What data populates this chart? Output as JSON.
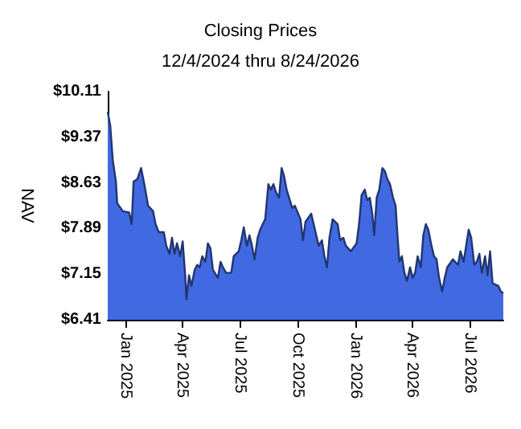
{
  "chart_data": {
    "type": "area",
    "title": "Closing Prices",
    "subtitle": "12/4/2024 thru 8/24/2026",
    "ylabel": "NAV",
    "x": [
      "2024-12-04",
      "2024-12-08",
      "2024-12-12",
      "2024-12-17",
      "2024-12-19",
      "2024-12-28",
      "2025-01-07",
      "2025-01-11",
      "2025-01-14",
      "2025-01-20",
      "2025-01-26",
      "2025-02-01",
      "2025-02-06",
      "2025-02-14",
      "2025-02-18",
      "2025-02-23",
      "2025-03-03",
      "2025-03-07",
      "2025-03-12",
      "2025-03-16",
      "2025-03-20",
      "2025-03-24",
      "2025-03-29",
      "2025-04-02",
      "2025-04-06",
      "2025-04-08",
      "2025-04-12",
      "2025-04-16",
      "2025-04-21",
      "2025-04-25",
      "2025-04-29",
      "2025-05-03",
      "2025-05-08",
      "2025-05-12",
      "2025-05-16",
      "2025-05-20",
      "2025-05-28",
      "2025-06-01",
      "2025-06-05",
      "2025-06-10",
      "2025-06-18",
      "2025-06-22",
      "2025-06-30",
      "2025-07-04",
      "2025-07-08",
      "2025-07-13",
      "2025-07-17",
      "2025-07-21",
      "2025-07-25",
      "2025-07-30",
      "2025-08-03",
      "2025-08-07",
      "2025-08-11",
      "2025-08-16",
      "2025-08-20",
      "2025-08-24",
      "2025-08-28",
      "2025-09-02",
      "2025-09-06",
      "2025-09-10",
      "2025-09-14",
      "2025-09-23",
      "2025-09-27",
      "2025-10-06",
      "2025-10-10",
      "2025-10-14",
      "2025-10-23",
      "2025-10-27",
      "2025-10-31",
      "2025-11-04",
      "2025-11-09",
      "2025-11-13",
      "2025-11-17",
      "2025-11-21",
      "2025-11-26",
      "2025-12-04",
      "2025-12-08",
      "2025-12-13",
      "2025-12-17",
      "2025-12-25",
      "2026-01-03",
      "2026-01-07",
      "2026-01-11",
      "2026-01-16",
      "2026-01-20",
      "2026-01-24",
      "2026-01-28",
      "2026-01-31",
      "2026-02-04",
      "2026-02-08",
      "2026-02-13",
      "2026-02-17",
      "2026-02-21",
      "2026-02-25",
      "2026-03-02",
      "2026-03-06",
      "2026-03-09",
      "2026-03-12",
      "2026-03-16",
      "2026-03-20",
      "2026-03-24",
      "2026-03-29",
      "2026-04-02",
      "2026-04-06",
      "2026-04-10",
      "2026-04-15",
      "2026-04-19",
      "2026-04-23",
      "2026-04-27",
      "2026-05-02",
      "2026-05-06",
      "2026-05-10",
      "2026-05-14",
      "2026-05-19",
      "2026-05-23",
      "2026-05-27",
      "2026-06-05",
      "2026-06-13",
      "2026-06-17",
      "2026-06-22",
      "2026-06-26",
      "2026-06-30",
      "2026-07-04",
      "2026-07-09",
      "2026-07-13",
      "2026-07-17",
      "2026-07-21",
      "2026-07-26",
      "2026-07-30",
      "2026-08-03",
      "2026-08-07",
      "2026-08-16",
      "2026-08-20",
      "2026-08-24"
    ],
    "series": [
      {
        "color": "#4169e1",
        "values": [
          9.78,
          9.56,
          9.0,
          8.65,
          8.3,
          8.17,
          8.15,
          7.96,
          8.65,
          8.69,
          8.87,
          8.56,
          8.26,
          8.17,
          7.96,
          7.83,
          7.83,
          7.61,
          7.48,
          7.74,
          7.48,
          7.65,
          7.44,
          7.68,
          7.13,
          6.74,
          7.13,
          6.96,
          7.22,
          7.3,
          7.26,
          7.44,
          7.35,
          7.65,
          7.57,
          7.22,
          7.09,
          7.35,
          7.26,
          7.17,
          7.17,
          7.44,
          7.52,
          7.7,
          7.91,
          7.61,
          7.78,
          7.61,
          7.39,
          7.74,
          7.87,
          7.96,
          8.04,
          8.61,
          8.52,
          8.61,
          8.48,
          8.39,
          8.87,
          8.74,
          8.52,
          8.22,
          8.26,
          8.04,
          7.7,
          8.0,
          8.13,
          7.96,
          7.78,
          7.61,
          7.7,
          7.44,
          7.26,
          7.74,
          8.04,
          7.96,
          7.7,
          7.74,
          7.61,
          7.52,
          7.65,
          7.96,
          8.43,
          8.52,
          8.35,
          8.39,
          8.13,
          7.78,
          8.39,
          8.52,
          8.87,
          8.82,
          8.69,
          8.61,
          8.39,
          8.26,
          7.78,
          7.35,
          7.44,
          7.17,
          7.04,
          7.26,
          7.09,
          7.17,
          7.44,
          7.26,
          7.78,
          7.96,
          7.87,
          7.61,
          7.44,
          7.39,
          7.09,
          6.87,
          7.09,
          7.26,
          7.39,
          7.3,
          7.52,
          7.35,
          7.61,
          7.87,
          7.74,
          7.3,
          7.35,
          7.48,
          7.17,
          7.44,
          7.13,
          7.52,
          7.0,
          6.96,
          6.87,
          6.84
        ]
      }
    ],
    "xlim": [
      "2024-12-04",
      "2026-08-24"
    ],
    "xticks": [
      {
        "value": "2025-01-01",
        "label": "Jan 2025"
      },
      {
        "value": "2025-04-01",
        "label": "Apr 2025"
      },
      {
        "value": "2025-07-01",
        "label": "Jul 2025"
      },
      {
        "value": "2025-10-01",
        "label": "Oct 2025"
      },
      {
        "value": "2026-01-01",
        "label": "Jan 2026"
      },
      {
        "value": "2026-04-01",
        "label": "Apr 2026"
      },
      {
        "value": "2026-07-01",
        "label": "Jul 2026"
      }
    ],
    "ylim": [
      6.41,
      10.11
    ],
    "yticks": [
      {
        "value": 6.41,
        "label": "$6.41"
      },
      {
        "value": 7.15,
        "label": "$7.15"
      },
      {
        "value": 7.89,
        "label": "$7.89"
      },
      {
        "value": 8.63,
        "label": "$8.63"
      },
      {
        "value": 9.37,
        "label": "$9.37"
      },
      {
        "value": 10.11,
        "label": "$10.11"
      }
    ],
    "grid": false,
    "marker": "none",
    "line_style": "solid"
  }
}
